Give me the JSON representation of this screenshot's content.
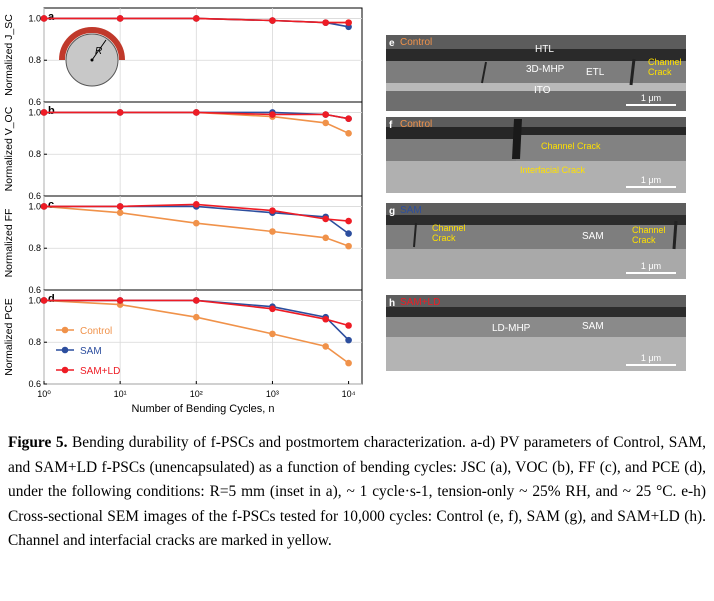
{
  "chart_data": {
    "type": "line",
    "x": [
      1,
      10,
      100,
      1000,
      5000,
      10000
    ],
    "xlabel": "Number of Bending Cycles, n",
    "xscale": "log",
    "xlim": [
      1,
      15000
    ],
    "xticks": [
      "10⁰",
      "10¹",
      "10²",
      "10³",
      "10⁴"
    ],
    "legend": [
      "Control",
      "SAM",
      "SAM+LD"
    ],
    "legend_placement": "bottom-left of panel d",
    "colors": {
      "Control": "#f0924a",
      "SAM": "#2c4e9e",
      "SAM+LD": "#ee1c25"
    },
    "panels": [
      {
        "letter": "a",
        "ylabel": "Normalized J_SC",
        "ylim": [
          0.6,
          1.05
        ],
        "yticks": [
          "1.0",
          "0.8",
          "0.6"
        ],
        "series": [
          {
            "name": "Control",
            "values": [
              1.0,
              1.0,
              1.0,
              0.99,
              0.98,
              0.98
            ]
          },
          {
            "name": "SAM",
            "values": [
              1.0,
              1.0,
              1.0,
              0.99,
              0.98,
              0.96
            ]
          },
          {
            "name": "SAM+LD",
            "values": [
              1.0,
              1.0,
              1.0,
              0.99,
              0.98,
              0.98
            ]
          }
        ]
      },
      {
        "letter": "b",
        "ylabel": "Normalized V_OC",
        "ylim": [
          0.6,
          1.05
        ],
        "yticks": [
          "1.0",
          "0.8",
          "0.6"
        ],
        "series": [
          {
            "name": "Control",
            "values": [
              1.0,
              1.0,
              1.0,
              0.98,
              0.95,
              0.9
            ]
          },
          {
            "name": "SAM",
            "values": [
              1.0,
              1.0,
              1.0,
              1.0,
              0.99,
              0.97
            ]
          },
          {
            "name": "SAM+LD",
            "values": [
              1.0,
              1.0,
              1.0,
              0.99,
              0.99,
              0.97
            ]
          }
        ]
      },
      {
        "letter": "c",
        "ylabel": "Normalized FF",
        "ylim": [
          0.6,
          1.05
        ],
        "yticks": [
          "1.0",
          "0.8",
          "0.6"
        ],
        "series": [
          {
            "name": "Control",
            "values": [
              1.0,
              0.97,
              0.92,
              0.88,
              0.85,
              0.81
            ]
          },
          {
            "name": "SAM",
            "values": [
              1.0,
              1.0,
              1.0,
              0.97,
              0.95,
              0.87
            ]
          },
          {
            "name": "SAM+LD",
            "values": [
              1.0,
              1.0,
              1.01,
              0.98,
              0.94,
              0.93
            ]
          }
        ]
      },
      {
        "letter": "d",
        "ylabel": "Normalized PCE",
        "ylim": [
          0.6,
          1.05
        ],
        "yticks": [
          "1.0",
          "0.8",
          "0.6"
        ],
        "series": [
          {
            "name": "Control",
            "values": [
              1.0,
              0.98,
              0.92,
              0.84,
              0.78,
              0.7
            ]
          },
          {
            "name": "SAM",
            "values": [
              1.0,
              1.0,
              1.0,
              0.97,
              0.92,
              0.81
            ]
          },
          {
            "name": "SAM+LD",
            "values": [
              1.0,
              1.0,
              1.0,
              0.96,
              0.91,
              0.88
            ]
          }
        ]
      }
    ],
    "inset_label": "R"
  },
  "sem_panels": [
    {
      "letter": "e",
      "sample": "Control",
      "sample_color": "#f0924a",
      "labels": [
        "HTL",
        "3D-MHP",
        "ETL",
        "ITO"
      ],
      "yellow_labels": [
        "Channel\nCrack"
      ],
      "scale": "1 μm"
    },
    {
      "letter": "f",
      "sample": "Control",
      "sample_color": "#f0924a",
      "labels": [],
      "yellow_labels": [
        "Channel Crack",
        "Interfacial Crack"
      ],
      "scale": "1 μm"
    },
    {
      "letter": "g",
      "sample": "SAM",
      "sample_color": "#2c4e9e",
      "labels": [
        "SAM"
      ],
      "yellow_labels": [
        "Channel\nCrack",
        "Channel\nCrack"
      ],
      "scale": "1 μm"
    },
    {
      "letter": "h",
      "sample": "SAM+LD",
      "sample_color": "#ee1c25",
      "labels": [
        "LD-MHP",
        "SAM"
      ],
      "yellow_labels": [],
      "scale": "1 μm"
    }
  ],
  "caption": {
    "figure_label": "Figure 5.",
    "text": " Bending durability of f-PSCs and postmortem characterization. a-d) PV parameters of Control, SAM, and SAM+LD f-PSCs (unencapsulated) as a function of bending cycles: JSC (a), VOC (b), FF (c), and PCE (d), under the following conditions: R=5 mm (inset in a), ~ 1 cycle·s-1, tension-only ~ 25% RH, and ~ 25 °C. e-h) Cross-sectional SEM images of the f-PSCs tested for 10,000 cycles: Control (e, f), SAM (g), and SAM+LD (h). Channel and interfacial cracks are marked in yellow."
  }
}
